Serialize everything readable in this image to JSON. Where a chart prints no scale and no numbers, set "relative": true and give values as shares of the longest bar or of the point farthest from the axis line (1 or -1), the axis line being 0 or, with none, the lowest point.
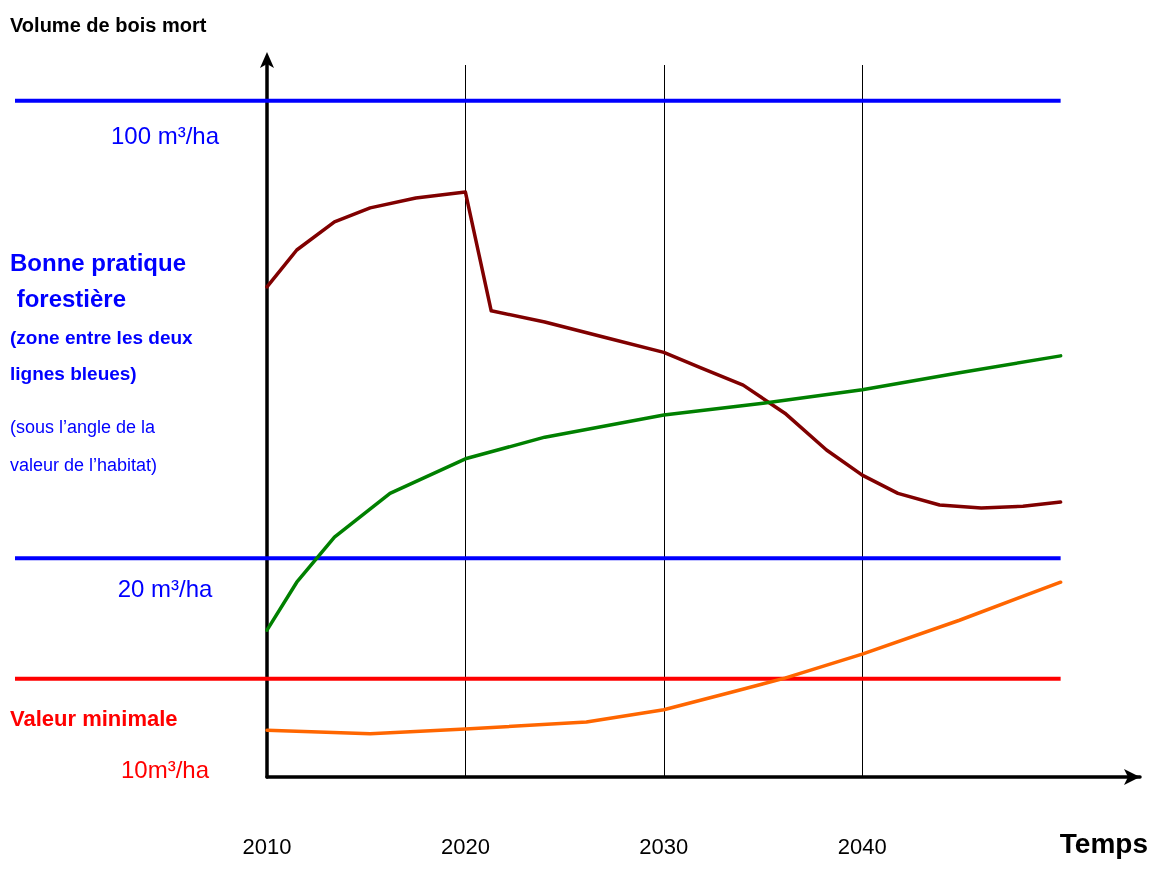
{
  "chart_data": {
    "type": "line",
    "relative": true,
    "xlabel": "Temps",
    "xlim": [
      2010,
      2054
    ],
    "xticks": [
      2010,
      2020,
      2030,
      2040
    ],
    "grid": "x",
    "marker": "none",
    "line_style": "solid",
    "series": [
      {
        "color": "#800000",
        "x": [
          2010,
          2011.5,
          2013.4,
          2015.2,
          2017.5,
          2020,
          2021.3,
          2024,
          2027.2,
          2030,
          2031.9,
          2034,
          2036.1,
          2038.2,
          2040,
          2041.8,
          2043.9,
          2046,
          2048.1,
          2050
        ],
        "values": [
          0.838,
          0.901,
          0.949,
          0.973,
          0.99,
          1,
          0.797,
          0.778,
          0.75,
          0.726,
          0.699,
          0.67,
          0.622,
          0.559,
          0.516,
          0.485,
          0.465,
          0.46,
          0.463,
          0.47
        ]
      },
      {
        "color": "#008000",
        "x": [
          2010,
          2011.5,
          2013.4,
          2016.2,
          2020,
          2024,
          2030,
          2035,
          2040,
          2044.9,
          2050
        ],
        "values": [
          0.251,
          0.333,
          0.41,
          0.485,
          0.544,
          0.581,
          0.619,
          0.639,
          0.662,
          0.691,
          0.72
        ]
      },
      {
        "color": "#ff6600",
        "x": [
          2010,
          2015.2,
          2020,
          2026.1,
          2030,
          2033.4,
          2036.1,
          2040,
          2044.9,
          2050
        ],
        "values": [
          0.08,
          0.074,
          0.082,
          0.094,
          0.115,
          0.145,
          0.169,
          0.21,
          0.268,
          0.333
        ]
      }
    ],
    "ref_lines": [
      {
        "axis": "y",
        "value": 1.156,
        "label": "100 m³/ha",
        "color": "#0000ff"
      },
      {
        "axis": "y",
        "value": 0.374,
        "label": "20 m³/ha",
        "color": "#0000ff"
      },
      {
        "axis": "y",
        "value": 0.168,
        "label": "10m³/ha",
        "color": "#ff0000"
      }
    ],
    "annotations": [
      "Volume de bois mort",
      "Bonne pratique forestière",
      "(zone entre les deux lignes bleues)",
      "(sous l’angle de la valeur de l’habitat)",
      "Valeur minimale"
    ]
  }
}
